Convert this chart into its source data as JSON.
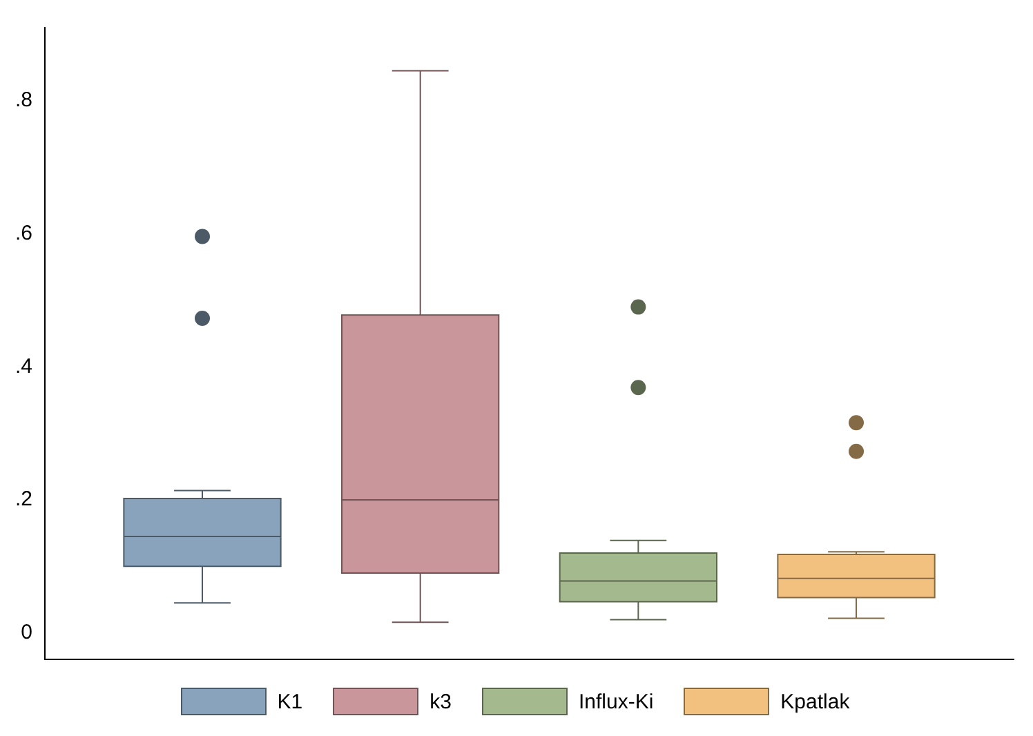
{
  "chart_data": {
    "type": "box",
    "categories": [
      null
    ],
    "series": [
      {
        "name": "K1",
        "color": "#8aa3bc",
        "boxes": [
          {
            "low": 0.045,
            "q1": 0.1,
            "median": 0.145,
            "q3": 0.202,
            "high": 0.214,
            "outliers": [
              0.596,
              0.473
            ]
          }
        ]
      },
      {
        "name": "k3",
        "color": "#c9979b",
        "boxes": [
          {
            "low": 0.016,
            "q1": 0.09,
            "median": 0.2,
            "q3": 0.478,
            "high": 0.845
          }
        ]
      },
      {
        "name": "Influx-Ki",
        "color": "#a5b98e",
        "boxes": [
          {
            "low": 0.02,
            "q1": 0.047,
            "median": 0.078,
            "q3": 0.12,
            "high": 0.139,
            "outliers": [
              0.49,
              0.369
            ]
          }
        ]
      },
      {
        "name": "Kpatlak",
        "color": "#f2c07f",
        "boxes": [
          {
            "low": 0.022,
            "q1": 0.053,
            "median": 0.082,
            "q3": 0.118,
            "high": 0.122,
            "outliers": [
              0.316,
              0.273
            ]
          }
        ]
      }
    ],
    "ylim": [
      -0.04,
      0.91
    ],
    "yticks": [
      0,
      {
        "value": 0.2,
        "label": ".2"
      },
      {
        "value": 0.4,
        "label": ".4"
      },
      {
        "value": 0.6,
        "label": ".6"
      },
      {
        "value": 0.8,
        "label": ".8"
      }
    ],
    "grid": false,
    "legend": "bottom"
  }
}
